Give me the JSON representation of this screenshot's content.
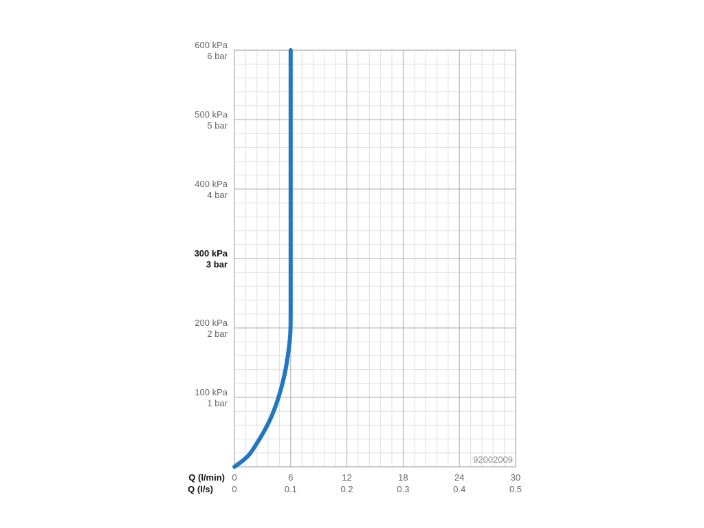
{
  "chart_data": {
    "type": "line",
    "y_ticks": [
      {
        "value": 100,
        "kpa": "100 kPa",
        "bar": "1 bar",
        "bold": false
      },
      {
        "value": 200,
        "kpa": "200 kPa",
        "bar": "2 bar",
        "bold": false
      },
      {
        "value": 300,
        "kpa": "300 kPa",
        "bar": "3 bar",
        "bold": true
      },
      {
        "value": 400,
        "kpa": "400 kPa",
        "bar": "4 bar",
        "bold": false
      },
      {
        "value": 500,
        "kpa": "500 kPa",
        "bar": "5 bar",
        "bold": false
      },
      {
        "value": 600,
        "kpa": "600 kPa",
        "bar": "6 bar",
        "bold": false
      }
    ],
    "x_ticks": [
      {
        "value": 0,
        "lmin": "0",
        "ls": "0"
      },
      {
        "value": 6,
        "lmin": "6",
        "ls": "0.1"
      },
      {
        "value": 12,
        "lmin": "12",
        "ls": "0.2"
      },
      {
        "value": 18,
        "lmin": "18",
        "ls": "0.3"
      },
      {
        "value": 24,
        "lmin": "24",
        "ls": "0.4"
      },
      {
        "value": 30,
        "lmin": "30",
        "ls": "0.5"
      }
    ],
    "x_axis_title_primary": "Q (l/min)",
    "x_axis_title_secondary": "Q (l/s)",
    "xlim": [
      0,
      30
    ],
    "ylim": [
      0,
      600
    ],
    "grid": true,
    "series": [
      {
        "color": "#1f78c1",
        "points": [
          {
            "x": 0,
            "y": 0
          },
          {
            "x": 0.8,
            "y": 8
          },
          {
            "x": 1.6,
            "y": 18
          },
          {
            "x": 2.4,
            "y": 34
          },
          {
            "x": 3.2,
            "y": 52
          },
          {
            "x": 4.0,
            "y": 74
          },
          {
            "x": 4.7,
            "y": 100
          },
          {
            "x": 5.3,
            "y": 130
          },
          {
            "x": 5.7,
            "y": 160
          },
          {
            "x": 5.95,
            "y": 190
          },
          {
            "x": 6.0,
            "y": 220
          },
          {
            "x": 6.0,
            "y": 300
          },
          {
            "x": 6.0,
            "y": 400
          },
          {
            "x": 6.0,
            "y": 500
          },
          {
            "x": 6.0,
            "y": 600
          }
        ]
      }
    ],
    "code_label": "92002009"
  }
}
